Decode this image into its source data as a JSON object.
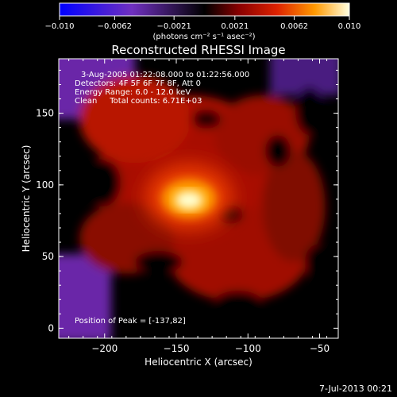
{
  "chart_data": {
    "type": "heatmap",
    "title": "Reconstructed RHESSI Image",
    "xlabel": "Heliocentric X (arcsec)",
    "ylabel": "Heliocentric Y (arcsec)",
    "xlim": [
      -232,
      -37
    ],
    "ylim": [
      -7,
      188
    ],
    "x_ticks": [
      -200,
      -150,
      -100,
      -50
    ],
    "x_tick_labels": [
      "−200",
      "−150",
      "−100",
      "−50"
    ],
    "y_ticks": [
      0,
      50,
      100,
      150
    ],
    "y_tick_labels": [
      "0",
      "50",
      "100",
      "150"
    ],
    "colorbar": {
      "min": -0.01,
      "max": 0.01,
      "ticks": [
        -0.01,
        -0.0062,
        -0.0021,
        0.0021,
        0.0062,
        0.01
      ],
      "tick_labels": [
        "−0.010",
        "−0.0062",
        "−0.0021",
        "0.0021",
        "0.0062",
        "0.010"
      ],
      "units": "(photons cm⁻² s⁻¹ asec⁻²)"
    },
    "peak": {
      "x": -137,
      "y": 82,
      "value": 0.01
    },
    "annotations": {
      "time_range": "3-Aug-2005 01:22:08.000 to 01:22:56.000",
      "detectors": "Detectors: 4F 5F 6F 7F 8F, Att 0",
      "energy": "Energy Range: 6.0 - 12.0 keV",
      "clean": "Clean     Total counts: 6.71E+03",
      "peak_label": "Position of Peak = [-137,82]"
    },
    "colors": {
      "negative_low": "#0000ff",
      "negative_high": "#7030a0",
      "zero": "#000000",
      "mid": "#c81400",
      "high": "#ff8c00",
      "peak": "#ffffcc"
    }
  },
  "footer": {
    "date": "7-Jul-2013 00:21"
  }
}
